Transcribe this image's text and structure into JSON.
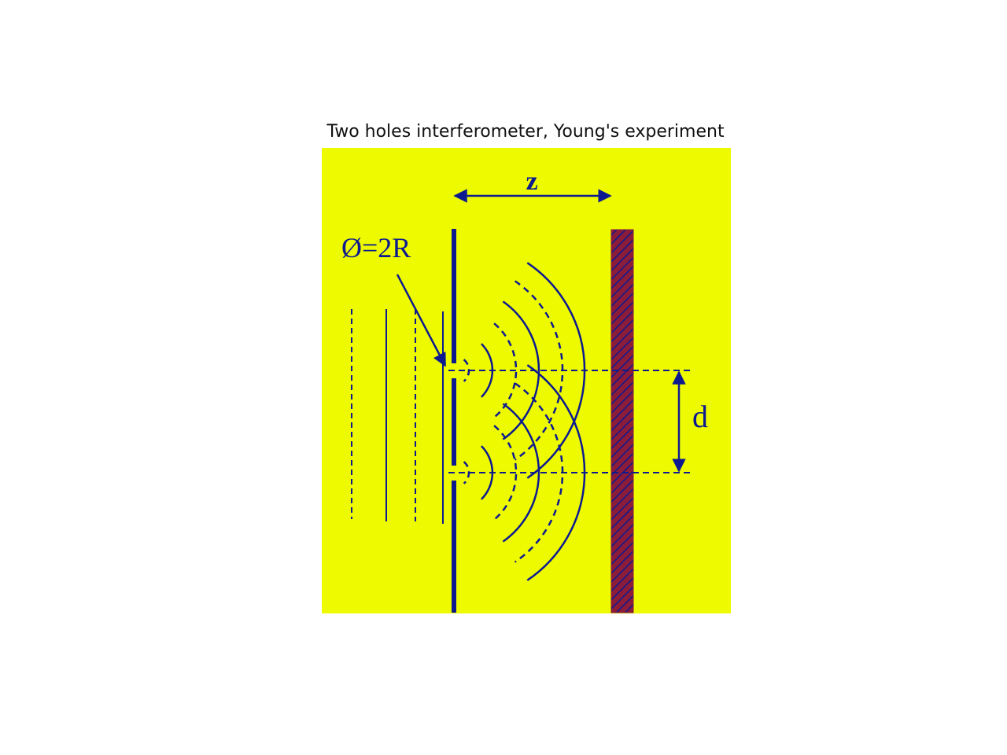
{
  "title": "Two holes interferometer, Young's experiment",
  "labels": {
    "z": "z",
    "d": "d",
    "aperture": "Ø=2R"
  },
  "colors": {
    "background": "#eefb00",
    "line": "#0d1a8f",
    "screen_fill": "#8b1c3a",
    "screen_hatch": "#0d1a8f"
  }
}
